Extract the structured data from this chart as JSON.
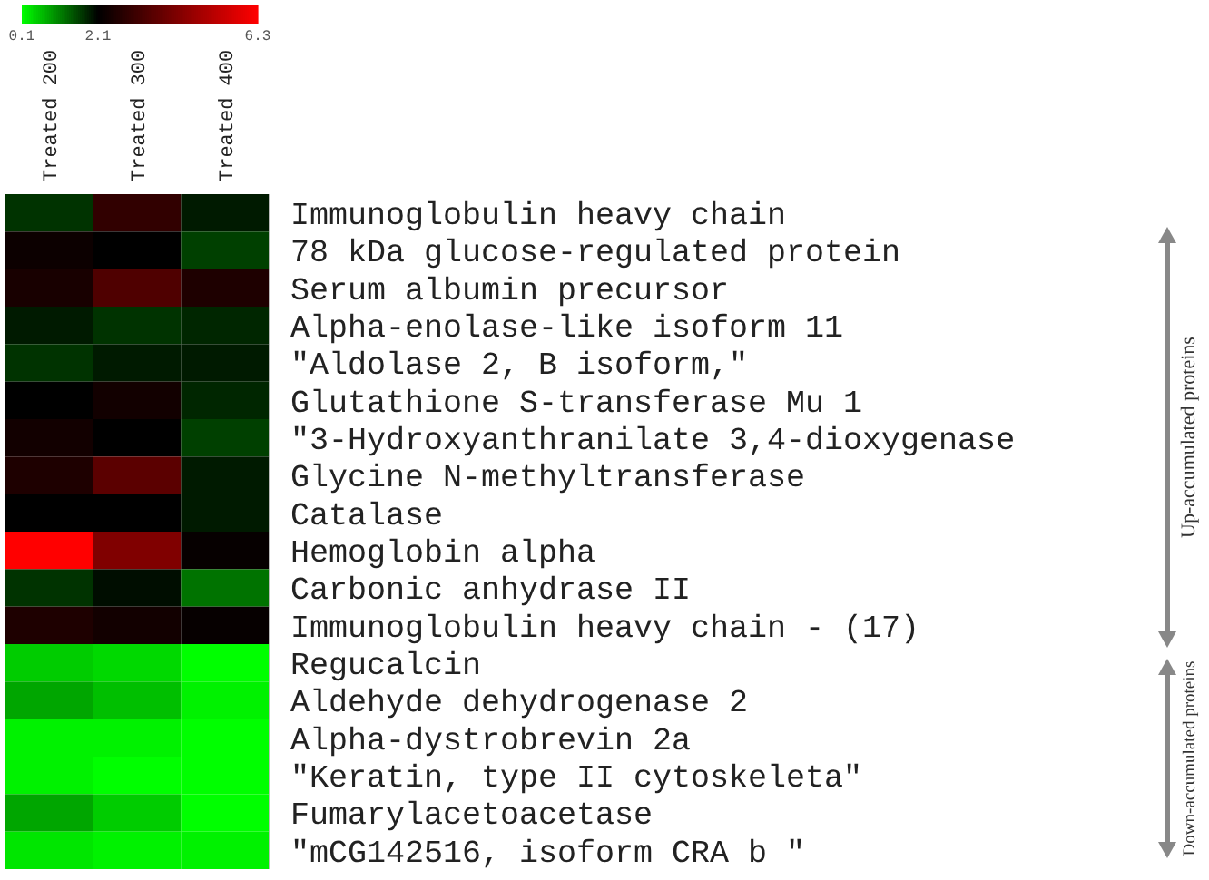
{
  "chart_data": {
    "type": "heatmap",
    "categories": [
      "Treated 200",
      "Treated 300",
      "Treated 400"
    ],
    "y_categories": [
      "Immunoglobulin heavy chain",
      "78 kDa glucose-regulated protein",
      "Serum albumin precursor",
      "Alpha-enolase-like isoform 11",
      "\"Aldolase 2, B isoform,\"",
      "Glutathione S-transferase Mu 1",
      "\"3-Hydroxyanthranilate 3,4-dioxygenase",
      "Glycine N-methyltransferase",
      "Catalase",
      "Hemoglobin alpha",
      "Carbonic anhydrase II",
      "Immunoglobulin heavy chain - (17)",
      "Regucalcin",
      "Aldehyde dehydrogenase 2",
      "Alpha-dystrobrevin 2a",
      "\"Keratin, type II cytoskeleta\"",
      "Fumarylacetoacetase",
      "\"mCG142516, isoform CRA b \""
    ],
    "cells": [
      [
        1.7,
        2.9,
        1.9
      ],
      [
        2.3,
        2.1,
        1.6
      ],
      [
        2.5,
        3.4,
        2.6
      ],
      [
        1.9,
        1.7,
        1.8
      ],
      [
        1.7,
        1.9,
        1.9
      ],
      [
        2.1,
        2.4,
        1.8
      ],
      [
        2.4,
        2.1,
        1.6
      ],
      [
        2.6,
        3.6,
        1.9
      ],
      [
        2.1,
        2.1,
        1.9
      ],
      [
        6.3,
        4.2,
        2.2
      ],
      [
        1.7,
        2.0,
        1.2
      ],
      [
        2.6,
        2.4,
        2.2
      ],
      [
        0.5,
        0.4,
        0.1
      ],
      [
        0.8,
        0.6,
        0.2
      ],
      [
        0.2,
        0.2,
        0.1
      ],
      [
        0.2,
        0.1,
        0.1
      ],
      [
        0.8,
        0.5,
        0.1
      ],
      [
        0.3,
        0.2,
        0.2
      ]
    ],
    "clim": [
      0.1,
      6.3
    ],
    "cticks": [
      0.1,
      2.1,
      6.3
    ],
    "annotations": [
      "Up-accumulated  proteins",
      "Down-accumulated proteins"
    ]
  }
}
